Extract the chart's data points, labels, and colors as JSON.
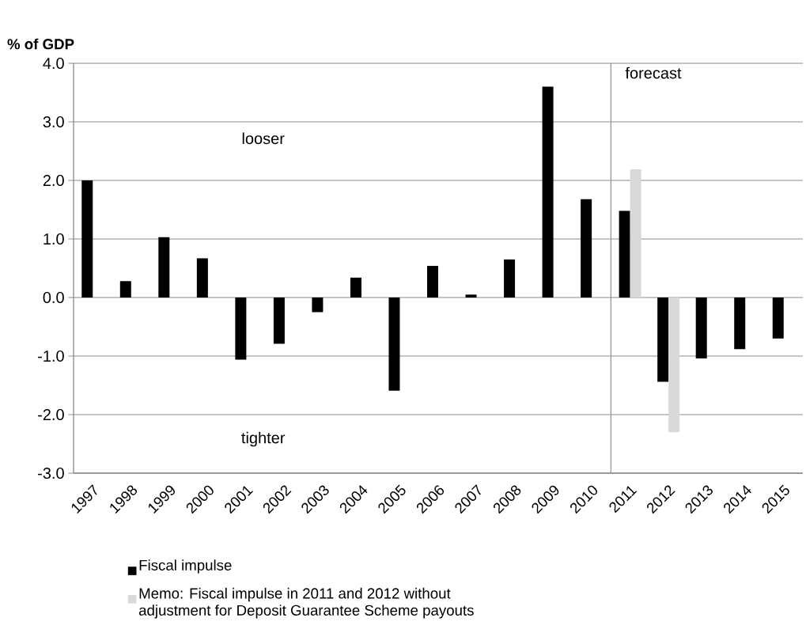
{
  "chart_data": {
    "type": "bar",
    "ylabel": "% of GDP",
    "categories": [
      "1997",
      "1998",
      "1999",
      "2000",
      "2001",
      "2002",
      "2003",
      "2004",
      "2005",
      "2006",
      "2007",
      "2008",
      "2009",
      "2010",
      "2011",
      "2012",
      "2013",
      "2014",
      "2015"
    ],
    "series": [
      {
        "name": "Fiscal impulse",
        "color": "#000000",
        "values": [
          2.0,
          0.28,
          1.03,
          0.67,
          -1.06,
          -0.79,
          -0.25,
          0.34,
          -1.59,
          0.54,
          0.05,
          0.65,
          3.6,
          1.68,
          1.48,
          -1.44,
          -1.04,
          -0.88,
          -0.7
        ]
      },
      {
        "name": "Memo: Fiscal impulse in 2011 and 2012 without adjustment for Deposit Guarantee Scheme payouts",
        "color": "#d9d9d9",
        "values": [
          null,
          null,
          null,
          null,
          null,
          null,
          null,
          null,
          null,
          null,
          null,
          null,
          null,
          null,
          2.19,
          -2.3,
          null,
          null,
          null
        ]
      }
    ],
    "ylim": [
      -3,
      4
    ],
    "yticks": [
      {
        "value": -3,
        "label": "-3.0"
      },
      {
        "value": -2,
        "label": "-2.0"
      },
      {
        "value": -1,
        "label": "-1.0"
      },
      {
        "value": 0,
        "label": "0.0"
      },
      {
        "value": 1,
        "label": "1.0"
      },
      {
        "value": 2,
        "label": "2.0"
      },
      {
        "value": 3,
        "label": "3.0"
      },
      {
        "value": 4,
        "label": "4.0"
      }
    ],
    "grid": "y",
    "legend": "bottom",
    "ref_lines": [
      {
        "axis": "x",
        "value": "2011",
        "label": "forecast",
        "color": "#969696"
      }
    ],
    "annotations": [
      "looser",
      "tighter"
    ]
  }
}
